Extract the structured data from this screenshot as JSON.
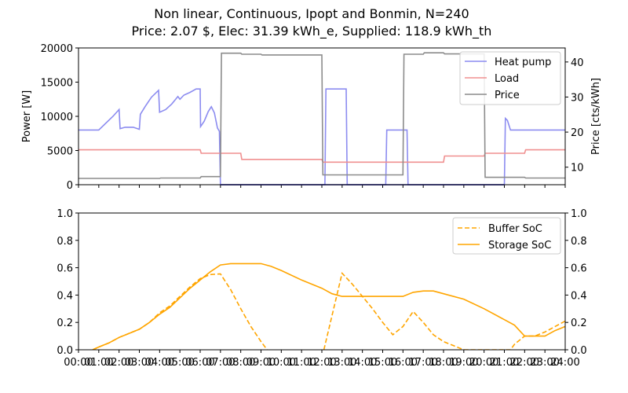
{
  "chart_data": [
    {
      "type": "line",
      "title": "Non linear, Continuous, Ipopt and Bonmin, N=240",
      "subtitle": "Price: 2.07 $, Elec: 31.39 kWh_e, Supplied: 118.9 kWh_th",
      "ylabel": "Power [W]",
      "y2label": "Price [cts/kWh]",
      "xlim": [
        0,
        24
      ],
      "ylim": [
        0,
        20000
      ],
      "y2lim": [
        5,
        44
      ],
      "yticks": [
        "0",
        "5000",
        "10000",
        "15000",
        "20000"
      ],
      "y2ticks": [
        "10",
        "20",
        "30",
        "40"
      ],
      "legend": "top-right",
      "series": [
        {
          "name": "Heat pump",
          "color": "#8c8cf0",
          "points": [
            [
              0,
              8000
            ],
            [
              1,
              8000
            ],
            [
              1.7,
              10000
            ],
            [
              2,
              11000
            ],
            [
              2.05,
              8200
            ],
            [
              2.3,
              8400
            ],
            [
              2.7,
              8400
            ],
            [
              3,
              8100
            ],
            [
              3.05,
              10300
            ],
            [
              3.3,
              11500
            ],
            [
              3.6,
              12800
            ],
            [
              3.95,
              13800
            ],
            [
              4.0,
              10600
            ],
            [
              4.3,
              11000
            ],
            [
              4.6,
              11800
            ],
            [
              4.9,
              12900
            ],
            [
              5.0,
              12500
            ],
            [
              5.2,
              13100
            ],
            [
              5.5,
              13500
            ],
            [
              5.8,
              14000
            ],
            [
              6.0,
              14000
            ],
            [
              6.02,
              8500
            ],
            [
              6.2,
              9300
            ],
            [
              6.4,
              10700
            ],
            [
              6.55,
              11400
            ],
            [
              6.7,
              10500
            ],
            [
              6.85,
              8300
            ],
            [
              6.95,
              7800
            ],
            [
              7.0,
              0
            ],
            [
              12.15,
              0
            ],
            [
              12.2,
              14000
            ],
            [
              13.2,
              14000
            ],
            [
              13.25,
              0
            ],
            [
              15.15,
              0
            ],
            [
              15.2,
              8000
            ],
            [
              16.2,
              8000
            ],
            [
              16.25,
              0
            ],
            [
              21.0,
              0
            ],
            [
              21.05,
              9700
            ],
            [
              21.15,
              9400
            ],
            [
              21.3,
              8000
            ],
            [
              24,
              8000
            ]
          ]
        },
        {
          "name": "Load",
          "color": "#f09090",
          "points": [
            [
              0,
              5100
            ],
            [
              6,
              5100
            ],
            [
              6.05,
              4600
            ],
            [
              8.0,
              4600
            ],
            [
              8.05,
              3700
            ],
            [
              12.0,
              3700
            ],
            [
              12.05,
              3300
            ],
            [
              18.0,
              3300
            ],
            [
              18.05,
              4200
            ],
            [
              20.0,
              4200
            ],
            [
              20.05,
              4600
            ],
            [
              22.0,
              4600
            ],
            [
              22.05,
              5100
            ],
            [
              24,
              5100
            ]
          ]
        },
        {
          "name": "Price",
          "color": "#8c8c8c",
          "axis": "right",
          "points": [
            [
              0,
              6.8
            ],
            [
              4,
              6.8
            ],
            [
              4.05,
              6.9
            ],
            [
              6,
              6.9
            ],
            [
              6.05,
              7.3
            ],
            [
              7.0,
              7.3
            ],
            [
              7.05,
              42.5
            ],
            [
              8.0,
              42.5
            ],
            [
              8.05,
              42.2
            ],
            [
              9.0,
              42.2
            ],
            [
              9.05,
              42.0
            ],
            [
              12.0,
              42.0
            ],
            [
              12.05,
              7.8
            ],
            [
              16.0,
              7.8
            ],
            [
              16.05,
              42.2
            ],
            [
              17.0,
              42.2
            ],
            [
              17.05,
              42.6
            ],
            [
              18.0,
              42.6
            ],
            [
              18.05,
              42.3
            ],
            [
              20.0,
              42.3
            ],
            [
              20.05,
              7.1
            ],
            [
              22.0,
              7.1
            ],
            [
              22.05,
              6.9
            ],
            [
              24,
              6.9
            ]
          ]
        }
      ]
    },
    {
      "type": "line",
      "xlim": [
        0,
        24
      ],
      "ylim": [
        0,
        1.0
      ],
      "yticks": [
        "0.0",
        "0.2",
        "0.4",
        "0.6",
        "0.8",
        "1.0"
      ],
      "xticks": [
        "00:00",
        "01:00",
        "02:00",
        "03:00",
        "04:00",
        "05:00",
        "06:00",
        "07:00",
        "08:00",
        "09:00",
        "10:00",
        "11:00",
        "12:00",
        "13:00",
        "14:00",
        "15:00",
        "16:00",
        "17:00",
        "18:00",
        "19:00",
        "20:00",
        "21:00",
        "22:00",
        "23:00",
        "24:00"
      ],
      "legend": "top-right",
      "series": [
        {
          "name": "Buffer SoC",
          "color": "#ffa500",
          "dash": "dashed",
          "points": [
            [
              0.7,
              0
            ],
            [
              1,
              0.02
            ],
            [
              1.5,
              0.05
            ],
            [
              2,
              0.09
            ],
            [
              2.5,
              0.12
            ],
            [
              3,
              0.15
            ],
            [
              3.5,
              0.2
            ],
            [
              4,
              0.27
            ],
            [
              4.5,
              0.32
            ],
            [
              5,
              0.39
            ],
            [
              5.5,
              0.46
            ],
            [
              6,
              0.52
            ],
            [
              6.5,
              0.55
            ],
            [
              7,
              0.555
            ],
            [
              7.5,
              0.44
            ],
            [
              8,
              0.3
            ],
            [
              8.5,
              0.17
            ],
            [
              9,
              0.06
            ],
            [
              9.3,
              0
            ]
          ],
          "points2": [
            [
              12.1,
              0
            ],
            [
              13,
              0.56
            ],
            [
              13.5,
              0.48
            ],
            [
              14,
              0.39
            ],
            [
              14.5,
              0.3
            ],
            [
              15,
              0.2
            ],
            [
              15.5,
              0.11
            ],
            [
              16,
              0.17
            ],
            [
              16.5,
              0.28
            ],
            [
              17,
              0.2
            ],
            [
              17.5,
              0.11
            ],
            [
              18,
              0.06
            ],
            [
              18.5,
              0.03
            ],
            [
              19,
              0
            ],
            [
              21.3,
              0
            ],
            [
              21.5,
              0.04
            ],
            [
              22,
              0.1
            ],
            [
              22.5,
              0.1
            ],
            [
              23,
              0.13
            ],
            [
              23.5,
              0.17
            ],
            [
              24,
              0.21
            ]
          ]
        },
        {
          "name": "Storage SoC",
          "color": "#ffa500",
          "dash": "solid",
          "points": [
            [
              0.7,
              0
            ],
            [
              1,
              0.02
            ],
            [
              1.5,
              0.05
            ],
            [
              2,
              0.09
            ],
            [
              2.5,
              0.12
            ],
            [
              3,
              0.15
            ],
            [
              3.5,
              0.2
            ],
            [
              4,
              0.26
            ],
            [
              4.5,
              0.31
            ],
            [
              5,
              0.38
            ],
            [
              5.5,
              0.45
            ],
            [
              6,
              0.51
            ],
            [
              6.5,
              0.57
            ],
            [
              7,
              0.62
            ],
            [
              7.5,
              0.63
            ],
            [
              8,
              0.63
            ],
            [
              9,
              0.63
            ],
            [
              9.5,
              0.61
            ],
            [
              10,
              0.58
            ],
            [
              11,
              0.51
            ],
            [
              12,
              0.45
            ],
            [
              12.5,
              0.41
            ],
            [
              13,
              0.39
            ],
            [
              14,
              0.39
            ],
            [
              15,
              0.39
            ],
            [
              16,
              0.39
            ],
            [
              16.5,
              0.42
            ],
            [
              17,
              0.43
            ],
            [
              17.5,
              0.43
            ],
            [
              18,
              0.41
            ],
            [
              19,
              0.37
            ],
            [
              20,
              0.3
            ],
            [
              21,
              0.22
            ],
            [
              21.5,
              0.18
            ],
            [
              22,
              0.1
            ],
            [
              23,
              0.1
            ],
            [
              23.5,
              0.14
            ],
            [
              24,
              0.17
            ]
          ]
        }
      ]
    }
  ]
}
